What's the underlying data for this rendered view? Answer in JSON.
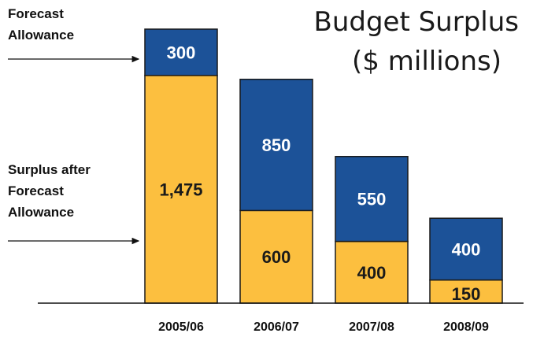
{
  "chart_data": {
    "type": "bar",
    "stacked": true,
    "title_line1": "Budget Surplus",
    "title_line2": "($ millions)",
    "categories": [
      "2005/06",
      "2006/07",
      "2007/08",
      "2008/09"
    ],
    "series": [
      {
        "name": "Surplus after Forecast Allowance",
        "color": "#fcbf3f",
        "values": [
          1475,
          600,
          400,
          150
        ],
        "labels": [
          "1,475",
          "600",
          "400",
          "150"
        ]
      },
      {
        "name": "Forecast Allowance",
        "color": "#1c5298",
        "values": [
          300,
          850,
          550,
          400
        ],
        "labels": [
          "300",
          "850",
          "550",
          "400"
        ]
      }
    ],
    "ylim": [
      0,
      1775
    ],
    "annotations": [
      {
        "lines": [
          "Forecast",
          "Allowance"
        ],
        "target": "Forecast Allowance"
      },
      {
        "lines": [
          "Surplus after",
          "Forecast",
          "Allowance"
        ],
        "target": "Surplus after Forecast Allowance"
      }
    ]
  }
}
